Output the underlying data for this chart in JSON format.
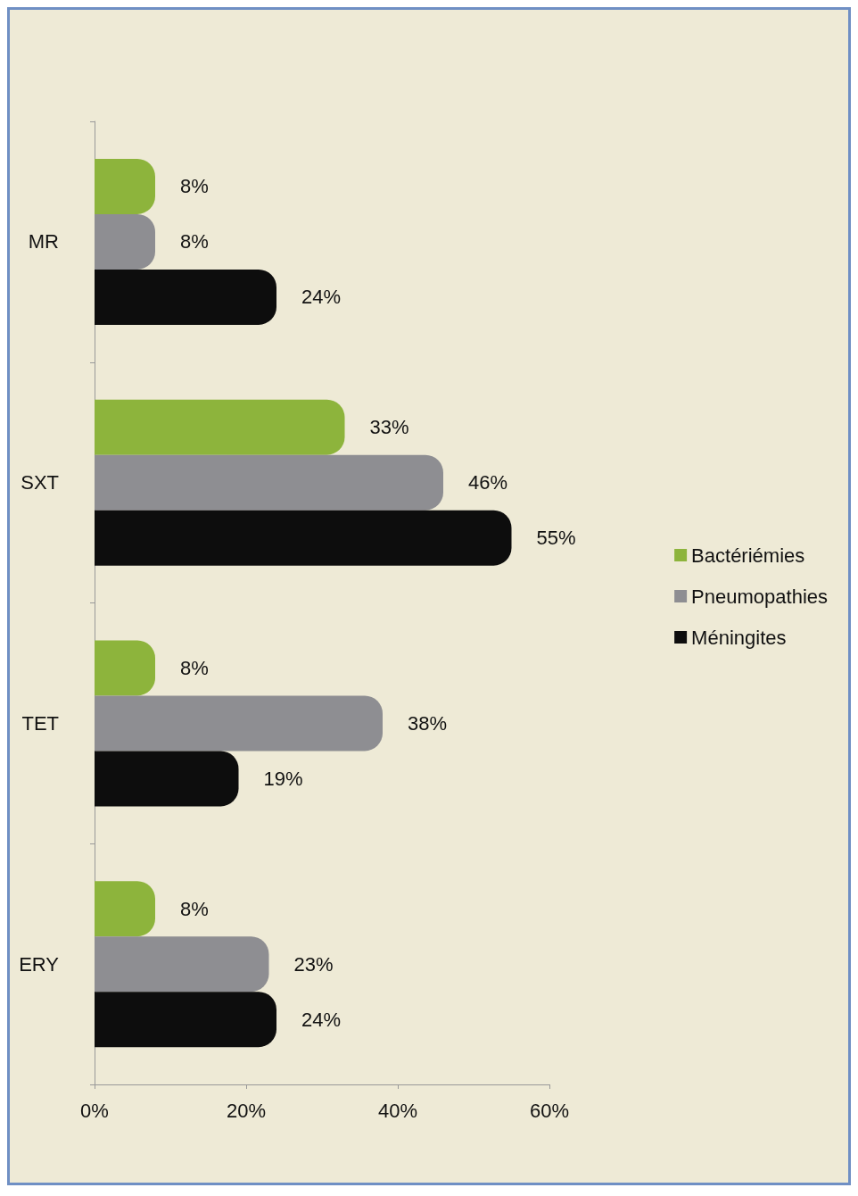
{
  "chart_data": {
    "type": "bar",
    "orientation": "horizontal",
    "categories": [
      "MR",
      "SXT",
      "TET",
      "ERY"
    ],
    "series": [
      {
        "name": "Bactériémies",
        "color": "#8db43c",
        "values": [
          8,
          33,
          8,
          8
        ],
        "value_labels": [
          "8%",
          "33%",
          "8%",
          "8%"
        ]
      },
      {
        "name": "Pneumopathies",
        "color": "#8e8e92",
        "values": [
          8,
          46,
          38,
          23
        ],
        "value_labels": [
          "8%",
          "46%",
          "38%",
          "23%"
        ]
      },
      {
        "name": "Méningites",
        "color": "#0d0d0d",
        "values": [
          24,
          55,
          19,
          24
        ],
        "value_labels": [
          "24%",
          "55%",
          "19%",
          "24%"
        ]
      }
    ],
    "xlim": [
      0,
      60
    ],
    "xticks": [
      {
        "value": 0,
        "label": "0%"
      },
      {
        "value": 20,
        "label": "20%"
      },
      {
        "value": 40,
        "label": "40%"
      },
      {
        "value": 60,
        "label": "60%"
      }
    ],
    "grid": false,
    "legend": "right"
  }
}
